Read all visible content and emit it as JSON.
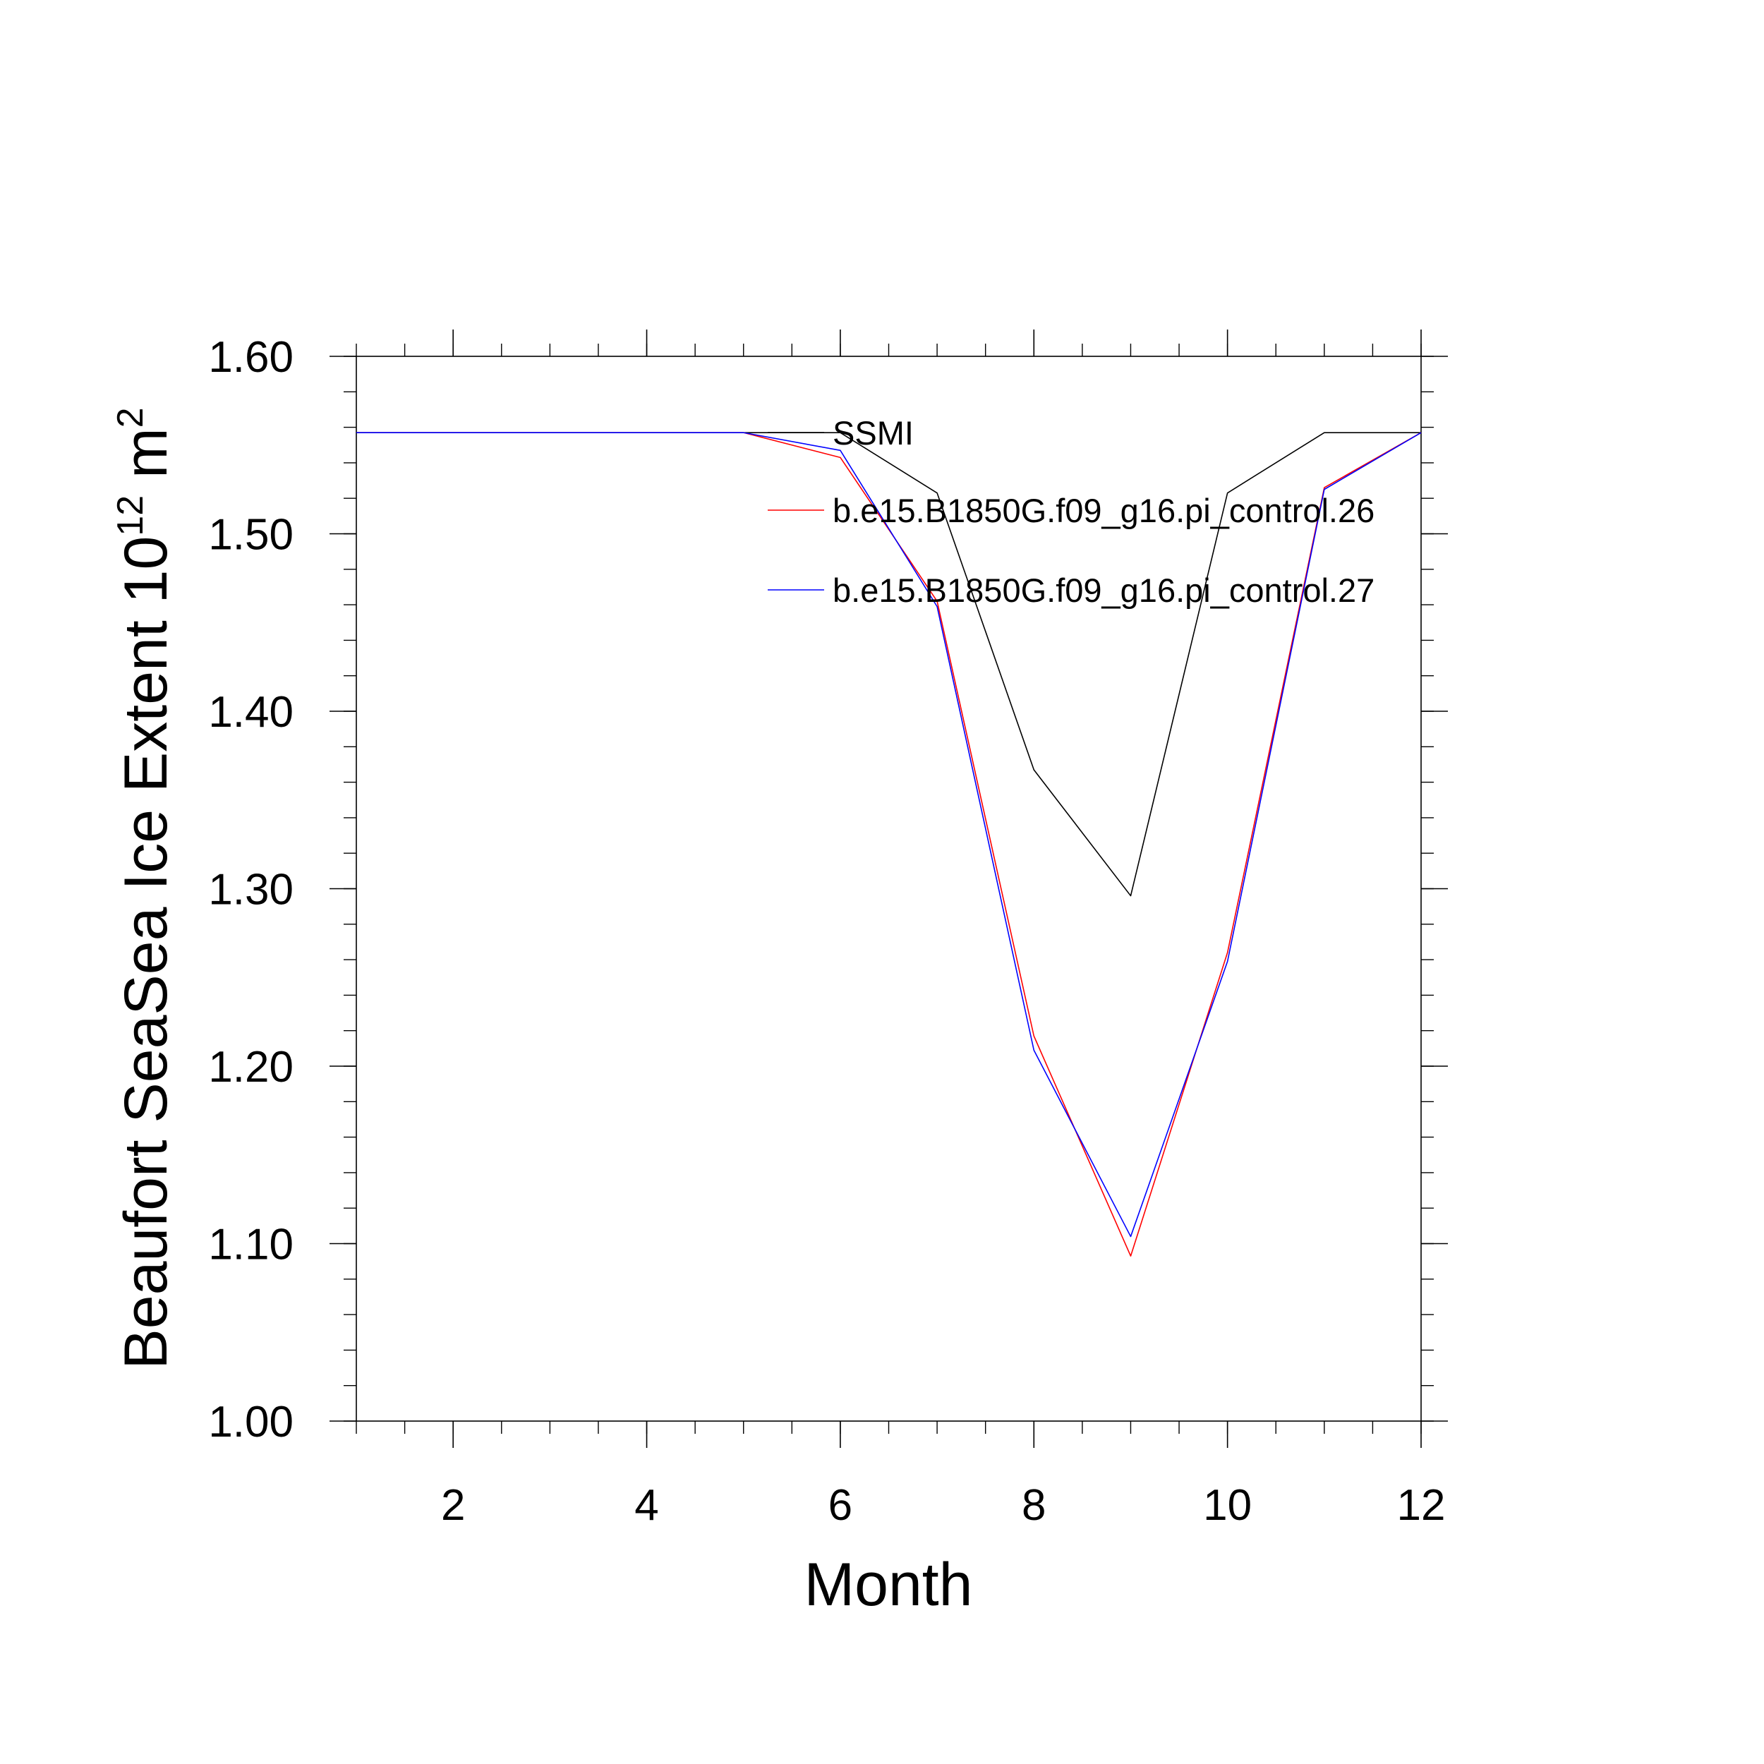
{
  "chart_data": {
    "type": "line",
    "title": "",
    "xlabel": "Month",
    "ylabel_main": "Beaufort SeaSea Ice Extent 10",
    "ylabel_exp1": "12",
    "ylabel_unit": " m",
    "ylabel_exp2": "2",
    "xlim": [
      1,
      12
    ],
    "ylim": [
      1.0,
      1.6
    ],
    "x_ticks": [
      2,
      4,
      6,
      8,
      10,
      12
    ],
    "x_tick_labels": [
      "2",
      "4",
      "6",
      "8",
      "10",
      "12"
    ],
    "y_ticks": [
      1.0,
      1.1,
      1.2,
      1.3,
      1.4,
      1.5,
      1.6
    ],
    "y_tick_labels": [
      "1.00",
      "1.10",
      "1.20",
      "1.30",
      "1.40",
      "1.50",
      "1.60"
    ],
    "grid": false,
    "legend_position": "top-right",
    "x": [
      1,
      2,
      3,
      4,
      5,
      6,
      7,
      8,
      9,
      10,
      11,
      12
    ],
    "series": [
      {
        "name": "SSMI",
        "color": "#000000",
        "values": [
          1.557,
          1.557,
          1.557,
          1.557,
          1.557,
          1.557,
          1.523,
          1.367,
          1.296,
          1.523,
          1.557,
          1.557
        ]
      },
      {
        "name": "b.e15.B1850G.f09_g16.pi_control.26",
        "color": "#ff0000",
        "values": [
          1.557,
          1.557,
          1.557,
          1.557,
          1.557,
          1.543,
          1.462,
          1.217,
          1.093,
          1.264,
          1.526,
          1.557
        ]
      },
      {
        "name": "b.e15.B1850G.f09_g16.pi_control.27",
        "color": "#0000ff",
        "values": [
          1.557,
          1.557,
          1.557,
          1.557,
          1.557,
          1.547,
          1.459,
          1.209,
          1.104,
          1.259,
          1.525,
          1.557
        ]
      }
    ]
  }
}
